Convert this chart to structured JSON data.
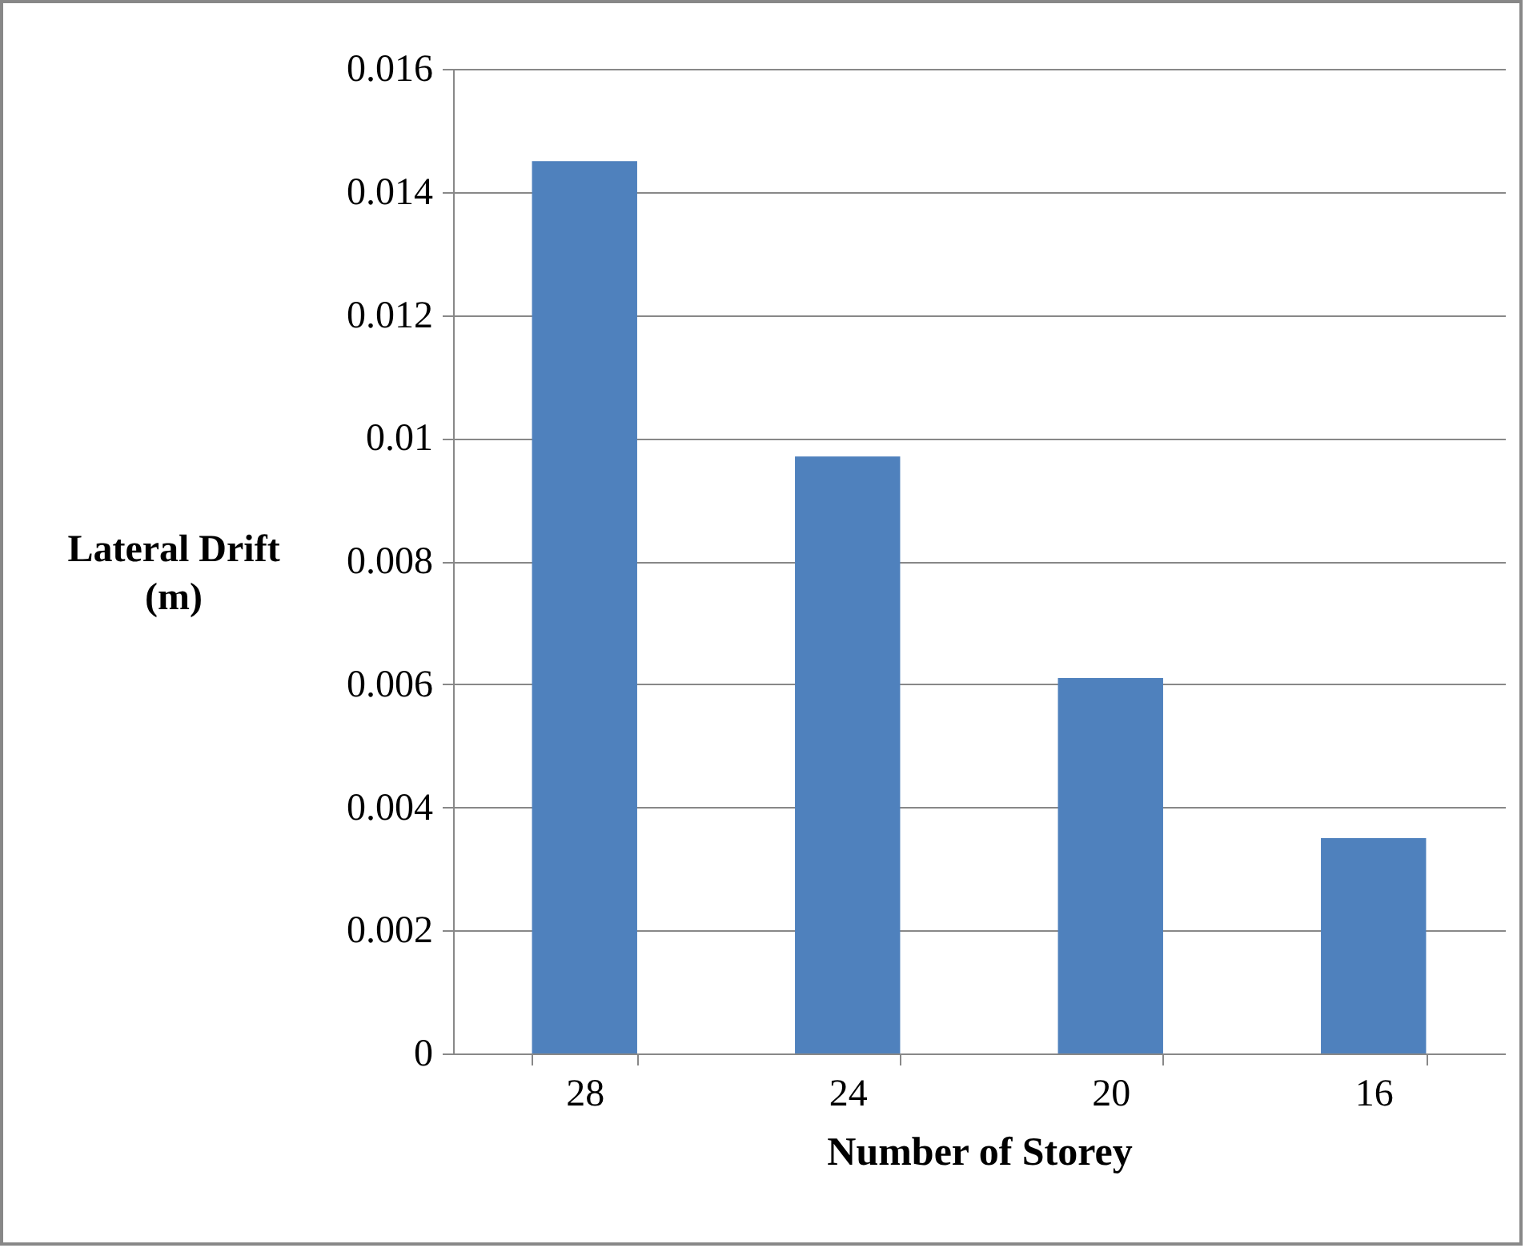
{
  "chart_data": {
    "type": "bar",
    "xlabel": "Number of Storey",
    "ylabel": "Lateral Drift (m)",
    "categories": [
      "28",
      "24",
      "20",
      "16"
    ],
    "values": [
      0.0145,
      0.0097,
      0.0061,
      0.0035
    ],
    "color": "#4f81bd",
    "ylim": [
      0,
      0.016
    ],
    "yticks": [
      0,
      0.002,
      0.004,
      0.006,
      0.008,
      {
        "value": 0.01,
        "label": "0.01"
      },
      0.012,
      0.014,
      0.016
    ],
    "grid": "y"
  }
}
